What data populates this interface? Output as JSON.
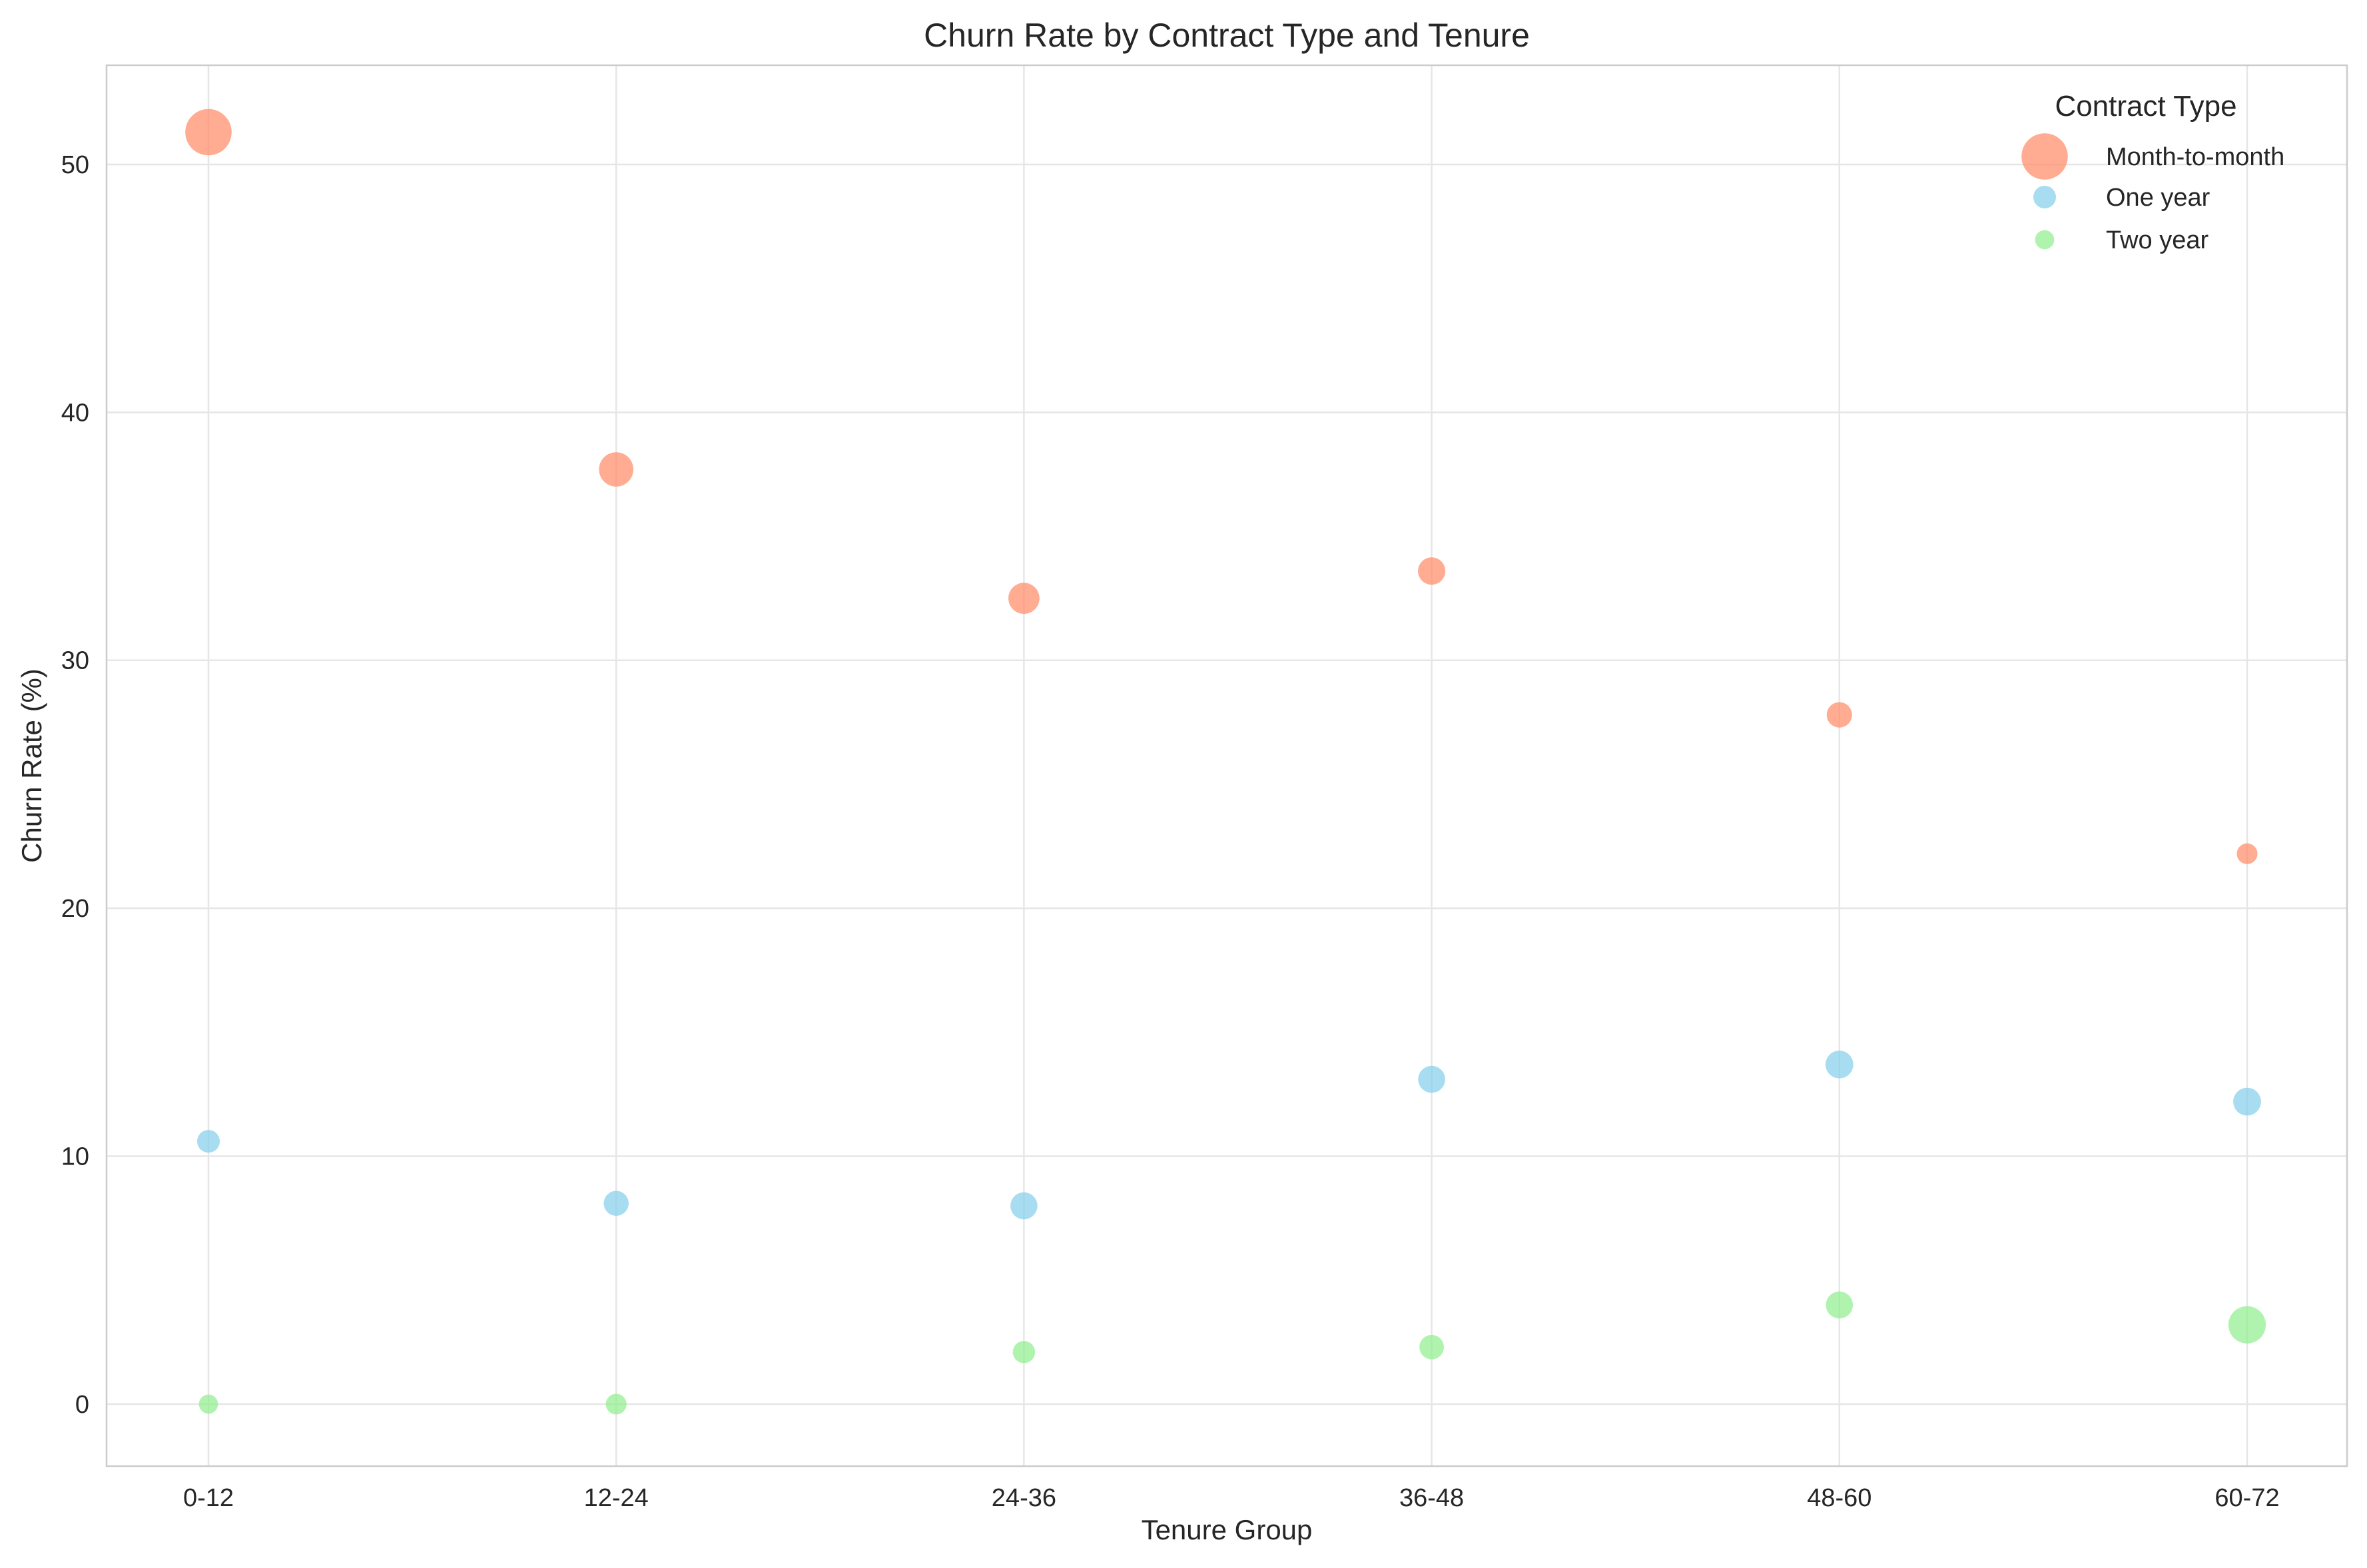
{
  "chart_data": {
    "type": "scatter",
    "title": "Churn Rate by Contract Type and Tenure",
    "xlabel": "Tenure Group",
    "ylabel": "Churn Rate (%)",
    "categories": [
      "0-12",
      "12-24",
      "24-36",
      "36-48",
      "48-60",
      "60-72"
    ],
    "ylim": [
      -2.5,
      54
    ],
    "yticks": [
      0,
      10,
      20,
      30,
      40,
      50
    ],
    "grid": true,
    "legend": {
      "title": "Contract Type",
      "position": "top-right"
    },
    "series": [
      {
        "name": "Month-to-month",
        "color": "#ff8c69",
        "values": [
          51.3,
          37.7,
          32.5,
          33.6,
          27.8,
          22.2
        ],
        "bubble_size": [
          10,
          5.5,
          4.5,
          3.5,
          3,
          2
        ]
      },
      {
        "name": "One year",
        "color": "#87ceeb",
        "values": [
          10.6,
          8.1,
          8.0,
          13.1,
          13.7,
          12.2
        ],
        "bubble_size": [
          2.4,
          2.9,
          3.4,
          3.4,
          3.6,
          3.6
        ]
      },
      {
        "name": "Two year",
        "color": "#90ee90",
        "values": [
          0.0,
          0.0,
          2.1,
          2.3,
          4.0,
          3.2
        ],
        "bubble_size": [
          1.7,
          2.0,
          2.3,
          2.8,
          3.4,
          6.5
        ]
      }
    ]
  }
}
